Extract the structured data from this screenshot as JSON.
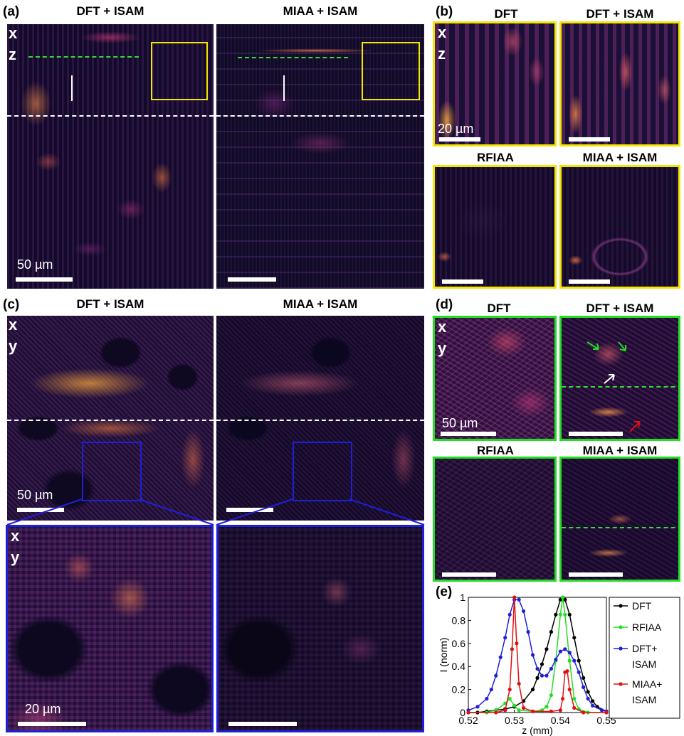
{
  "panels": {
    "a": {
      "label": "(a)",
      "titles": [
        "DFT + ISAM",
        "MIAA + ISAM"
      ],
      "scalebar": "50 µm"
    },
    "b": {
      "label": "(b)",
      "titles": [
        "DFT",
        "DFT + ISAM",
        "RFIAA",
        "MIAA + ISAM"
      ],
      "scalebar": "20 µm"
    },
    "c": {
      "label": "(c)",
      "titles": [
        "DFT + ISAM",
        "MIAA + ISAM"
      ],
      "scalebar_top": "50 µm",
      "scalebar_bottom": "20 µm"
    },
    "d": {
      "label": "(d)",
      "titles": [
        "DFT",
        "DFT + ISAM",
        "RFIAA",
        "MIAA + ISAM"
      ],
      "scalebar": "50 µm"
    },
    "e": {
      "label": "(e)"
    }
  },
  "axes": {
    "x": "x",
    "z": "z",
    "y": "y"
  },
  "colors": {
    "yellow": "#f2e600",
    "green": "#22dd22",
    "blue": "#1f1fd8",
    "dashed_white": "#ffffff",
    "dashed_green": "#33dd33"
  },
  "chart_data": {
    "type": "line",
    "xlabel": "z (mm)",
    "ylabel": "I (norm)",
    "xlim": [
      0.52,
      0.55
    ],
    "ylim": [
      0,
      1
    ],
    "xticks": [
      "0.52",
      "0.53",
      "0.54",
      "0.55"
    ],
    "yticks": [
      "0",
      "0.2",
      "0.4",
      "0.6",
      "0.8",
      "1"
    ],
    "legend_position": "right",
    "series": [
      {
        "name": "DFT",
        "color": "#000000",
        "points": [
          [
            0.52,
            0.0
          ],
          [
            0.522,
            0.0
          ],
          [
            0.524,
            0.01
          ],
          [
            0.526,
            0.02
          ],
          [
            0.528,
            0.03
          ],
          [
            0.53,
            0.05
          ],
          [
            0.532,
            0.1
          ],
          [
            0.534,
            0.2
          ],
          [
            0.535,
            0.3
          ],
          [
            0.536,
            0.42
          ],
          [
            0.537,
            0.55
          ],
          [
            0.538,
            0.7
          ],
          [
            0.539,
            0.85
          ],
          [
            0.54,
            0.98
          ],
          [
            0.541,
            0.98
          ],
          [
            0.542,
            0.85
          ],
          [
            0.543,
            0.65
          ],
          [
            0.544,
            0.45
          ],
          [
            0.545,
            0.3
          ],
          [
            0.546,
            0.18
          ],
          [
            0.547,
            0.1
          ],
          [
            0.548,
            0.05
          ],
          [
            0.55,
            0.01
          ]
        ]
      },
      {
        "name": "RFIAA",
        "color": "#22dd22",
        "points": [
          [
            0.52,
            0.0
          ],
          [
            0.524,
            0.0
          ],
          [
            0.526,
            0.02
          ],
          [
            0.528,
            0.08
          ],
          [
            0.529,
            0.12
          ],
          [
            0.53,
            0.06
          ],
          [
            0.531,
            0.02
          ],
          [
            0.534,
            0.01
          ],
          [
            0.536,
            0.02
          ],
          [
            0.537,
            0.05
          ],
          [
            0.538,
            0.15
          ],
          [
            0.539,
            0.45
          ],
          [
            0.54,
            0.85
          ],
          [
            0.5405,
            1.0
          ],
          [
            0.541,
            0.85
          ],
          [
            0.542,
            0.45
          ],
          [
            0.543,
            0.12
          ],
          [
            0.544,
            0.03
          ],
          [
            0.546,
            0.0
          ],
          [
            0.55,
            0.0
          ]
        ]
      },
      {
        "name": "DFT+\nISAM",
        "color": "#1f1fd8",
        "points": [
          [
            0.52,
            0.02
          ],
          [
            0.522,
            0.05
          ],
          [
            0.524,
            0.12
          ],
          [
            0.525,
            0.2
          ],
          [
            0.526,
            0.32
          ],
          [
            0.527,
            0.48
          ],
          [
            0.528,
            0.65
          ],
          [
            0.529,
            0.85
          ],
          [
            0.53,
            0.98
          ],
          [
            0.531,
            0.98
          ],
          [
            0.532,
            0.88
          ],
          [
            0.533,
            0.7
          ],
          [
            0.534,
            0.5
          ],
          [
            0.535,
            0.38
          ],
          [
            0.536,
            0.32
          ],
          [
            0.537,
            0.32
          ],
          [
            0.538,
            0.38
          ],
          [
            0.539,
            0.46
          ],
          [
            0.54,
            0.53
          ],
          [
            0.541,
            0.55
          ],
          [
            0.542,
            0.52
          ],
          [
            0.543,
            0.45
          ],
          [
            0.544,
            0.35
          ],
          [
            0.545,
            0.22
          ],
          [
            0.546,
            0.12
          ],
          [
            0.547,
            0.06
          ],
          [
            0.549,
            0.02
          ],
          [
            0.55,
            0.01
          ]
        ]
      },
      {
        "name": "MIAA+\nISAM",
        "color": "#e01010",
        "points": [
          [
            0.52,
            0.0
          ],
          [
            0.526,
            0.0
          ],
          [
            0.528,
            0.02
          ],
          [
            0.529,
            0.2
          ],
          [
            0.5295,
            0.55
          ],
          [
            0.53,
            1.0
          ],
          [
            0.5305,
            0.6
          ],
          [
            0.531,
            0.25
          ],
          [
            0.532,
            0.04
          ],
          [
            0.534,
            0.01
          ],
          [
            0.538,
            0.01
          ],
          [
            0.54,
            0.02
          ],
          [
            0.5405,
            0.12
          ],
          [
            0.541,
            0.35
          ],
          [
            0.5415,
            0.36
          ],
          [
            0.542,
            0.2
          ],
          [
            0.543,
            0.04
          ],
          [
            0.545,
            0.0
          ],
          [
            0.55,
            0.0
          ]
        ]
      }
    ]
  }
}
